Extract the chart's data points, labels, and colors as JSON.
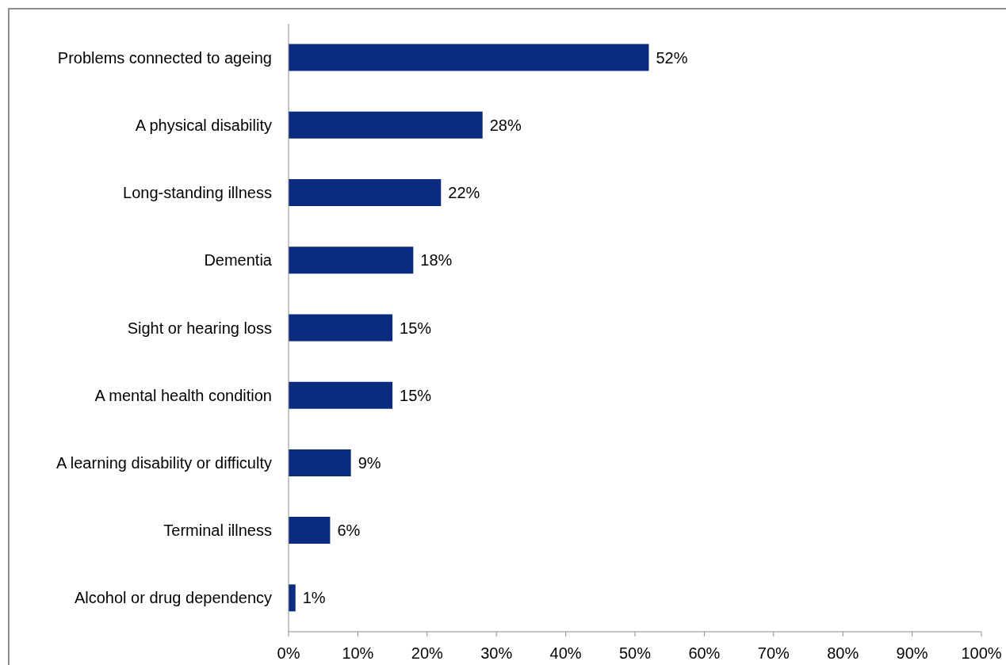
{
  "chart_data": {
    "type": "bar",
    "orientation": "horizontal",
    "categories": [
      "Problems connected to ageing",
      "A physical disability",
      "Long-standing illness",
      "Dementia",
      "Sight or hearing loss",
      "A mental health condition",
      "A learning disability or difficulty",
      "Terminal illness",
      "Alcohol or drug dependency"
    ],
    "values": [
      52,
      28,
      22,
      18,
      15,
      15,
      9,
      6,
      1
    ],
    "color": "#0b2b80",
    "value_labels": [
      "52%",
      "28%",
      "22%",
      "18%",
      "15%",
      "15%",
      "9%",
      "6%",
      "1%"
    ],
    "xlim": [
      0,
      100
    ],
    "xticks": [
      {
        "value": 0,
        "label": "0%"
      },
      {
        "value": 10,
        "label": "10%"
      },
      {
        "value": 20,
        "label": "20%"
      },
      {
        "value": 30,
        "label": "30%"
      },
      {
        "value": 40,
        "label": "40%"
      },
      {
        "value": 50,
        "label": "50%"
      },
      {
        "value": 60,
        "label": "60%"
      },
      {
        "value": 70,
        "label": "70%"
      },
      {
        "value": 80,
        "label": "80%"
      },
      {
        "value": 90,
        "label": "90%"
      },
      {
        "value": 100,
        "label": "100%"
      }
    ]
  }
}
